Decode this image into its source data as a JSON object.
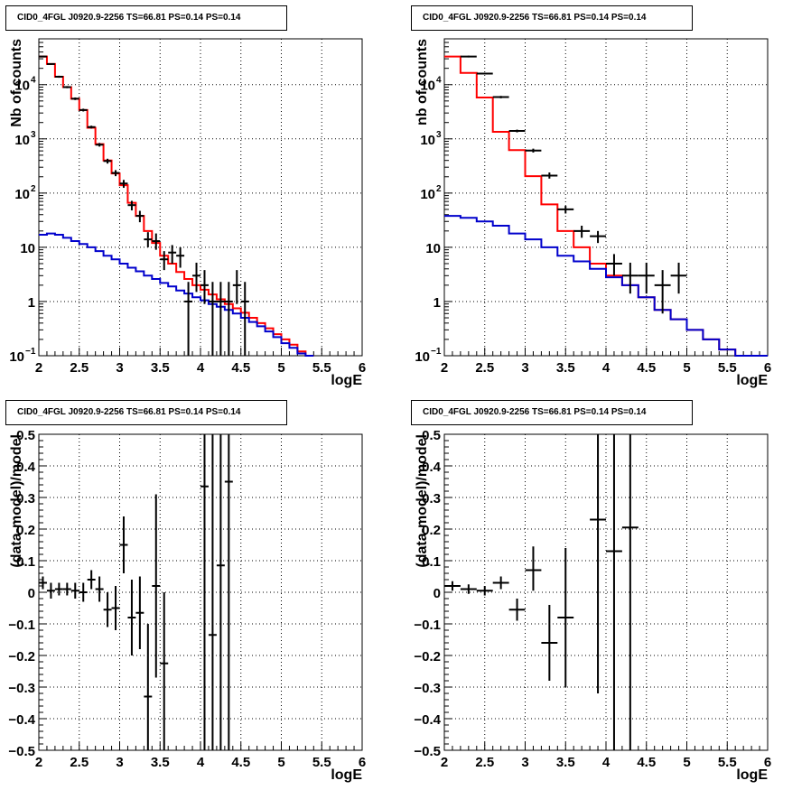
{
  "colors": {
    "data": "#000000",
    "total_model": "#ff0000",
    "component_model": "#0000cc",
    "grid": "#000000"
  },
  "chart_data": [
    {
      "type": "line",
      "scale": "log",
      "title": "CID0_4FGL J0920.9-2256 TS=66.81 PS=0.14 PS=0.14",
      "xlabel": "logE",
      "ylabel": "Nb of counts",
      "xlim": [
        2,
        6
      ],
      "ylim": [
        0.1,
        70000
      ],
      "xticks": [
        "2",
        "2.5",
        "3",
        "3.5",
        "4",
        "4.5",
        "5",
        "5.5",
        "6"
      ],
      "yticks": [
        {
          "v": 0.1,
          "label": "10",
          "sup": "−1"
        },
        {
          "v": 1,
          "label": "1"
        },
        {
          "v": 10,
          "label": "10"
        },
        {
          "v": 100,
          "label": "10",
          "sup": "2"
        },
        {
          "v": 1000,
          "label": "10",
          "sup": "3"
        },
        {
          "v": 10000,
          "label": "10",
          "sup": "4"
        }
      ],
      "grid": true,
      "bin_width": 0.1,
      "series": [
        {
          "role": "total",
          "bins": [
            [
              2.0,
              33000
            ],
            [
              2.1,
              24000
            ],
            [
              2.2,
              14000
            ],
            [
              2.3,
              9000
            ],
            [
              2.4,
              5500
            ],
            [
              2.5,
              3400
            ],
            [
              2.6,
              1600
            ],
            [
              2.7,
              800
            ],
            [
              2.8,
              400
            ],
            [
              2.9,
              230
            ],
            [
              3.0,
              140
            ],
            [
              3.1,
              66
            ],
            [
              3.2,
              38
            ],
            [
              3.3,
              20
            ],
            [
              3.4,
              12
            ],
            [
              3.5,
              7
            ],
            [
              3.6,
              5
            ],
            [
              3.7,
              3.5
            ],
            [
              3.8,
              2.6
            ],
            [
              3.9,
              2
            ],
            [
              4.0,
              1.65
            ],
            [
              4.1,
              1.35
            ],
            [
              4.2,
              1.1
            ],
            [
              4.3,
              0.9
            ],
            [
              4.4,
              0.75
            ],
            [
              4.5,
              0.62
            ],
            [
              4.6,
              0.5
            ],
            [
              4.7,
              0.4
            ],
            [
              4.8,
              0.32
            ],
            [
              4.9,
              0.25
            ],
            [
              5.0,
              0.2
            ],
            [
              5.1,
              0.16
            ],
            [
              5.2,
              0.12
            ],
            [
              5.3,
              0.1
            ]
          ]
        },
        {
          "role": "component",
          "bins": [
            [
              2.0,
              17
            ],
            [
              2.1,
              18
            ],
            [
              2.2,
              17
            ],
            [
              2.3,
              15
            ],
            [
              2.4,
              13
            ],
            [
              2.5,
              11.5
            ],
            [
              2.6,
              10
            ],
            [
              2.7,
              8.5
            ],
            [
              2.8,
              7
            ],
            [
              2.9,
              6
            ],
            [
              3.0,
              5
            ],
            [
              3.1,
              4.2
            ],
            [
              3.2,
              3.6
            ],
            [
              3.3,
              3
            ],
            [
              3.4,
              2.6
            ],
            [
              3.5,
              2.2
            ],
            [
              3.6,
              1.9
            ],
            [
              3.7,
              1.6
            ],
            [
              3.8,
              1.4
            ],
            [
              3.9,
              1.2
            ],
            [
              4.0,
              1.05
            ],
            [
              4.1,
              0.9
            ],
            [
              4.2,
              0.8
            ],
            [
              4.3,
              0.7
            ],
            [
              4.4,
              0.6
            ],
            [
              4.5,
              0.5
            ],
            [
              4.6,
              0.42
            ],
            [
              4.7,
              0.35
            ],
            [
              4.8,
              0.28
            ],
            [
              4.9,
              0.22
            ],
            [
              5.0,
              0.17
            ],
            [
              5.1,
              0.14
            ],
            [
              5.2,
              0.11
            ],
            [
              5.3,
              0.1
            ]
          ]
        }
      ],
      "points": [
        [
          2.05,
          33000,
          34000,
          32000
        ],
        [
          2.15,
          24000,
          24800,
          23200
        ],
        [
          2.25,
          14000,
          14600,
          13400
        ],
        [
          2.35,
          9000,
          9400,
          8600
        ],
        [
          2.45,
          5500,
          5800,
          5200
        ],
        [
          2.55,
          3400,
          3600,
          3200
        ],
        [
          2.65,
          1650,
          1750,
          1550
        ],
        [
          2.75,
          780,
          840,
          720
        ],
        [
          2.85,
          390,
          430,
          350
        ],
        [
          2.95,
          235,
          265,
          205
        ],
        [
          3.05,
          150,
          175,
          125
        ],
        [
          3.15,
          60,
          72,
          48
        ],
        [
          3.25,
          38,
          47,
          29
        ],
        [
          3.35,
          14,
          19,
          10
        ],
        [
          3.45,
          13,
          18,
          9
        ],
        [
          3.55,
          6,
          8.5,
          3.8
        ],
        [
          3.65,
          8,
          11,
          5
        ],
        [
          3.75,
          7,
          10,
          4.2
        ],
        [
          3.85,
          1,
          2.3,
          0.1
        ],
        [
          3.95,
          3,
          5.2,
          1.5
        ],
        [
          4.05,
          2,
          3.8,
          0.9
        ],
        [
          4.15,
          1,
          2.3,
          0.1
        ],
        [
          4.25,
          1,
          2.3,
          0.1
        ],
        [
          4.35,
          1,
          2.3,
          0.1
        ],
        [
          4.45,
          2,
          3.8,
          0.9
        ],
        [
          4.55,
          1,
          2.3,
          0.1
        ]
      ]
    },
    {
      "type": "line",
      "scale": "log",
      "title": "CID0_4FGL J0920.9-2256 TS=66.81 PS=0.14 PS=0.14",
      "xlabel": "logE",
      "ylabel": "nb of counts",
      "xlim": [
        2,
        6
      ],
      "ylim": [
        0.1,
        70000
      ],
      "xticks": [
        "2",
        "2.5",
        "3",
        "3.5",
        "4",
        "4.5",
        "5",
        "5.5",
        "6"
      ],
      "yticks": [
        {
          "v": 0.1,
          "label": "10",
          "sup": "−1"
        },
        {
          "v": 1,
          "label": "1"
        },
        {
          "v": 10,
          "label": "10"
        },
        {
          "v": 100,
          "label": "10",
          "sup": "2"
        },
        {
          "v": 1000,
          "label": "10",
          "sup": "3"
        },
        {
          "v": 10000,
          "label": "10",
          "sup": "4"
        }
      ],
      "grid": true,
      "bin_width": 0.2,
      "series": [
        {
          "role": "total",
          "bins": [
            [
              2.0,
              33000
            ],
            [
              2.2,
              16500
            ],
            [
              2.4,
              5800
            ],
            [
              2.6,
              1350
            ],
            [
              2.8,
              620
            ],
            [
              3.0,
              205
            ],
            [
              3.2,
              62
            ],
            [
              3.4,
              20
            ],
            [
              3.6,
              10
            ],
            [
              3.8,
              5
            ],
            [
              4.0,
              3
            ],
            [
              4.2,
              2
            ],
            [
              4.4,
              1.2
            ],
            [
              4.6,
              0.7
            ],
            [
              4.8,
              0.47
            ],
            [
              5.0,
              0.3
            ],
            [
              5.2,
              0.2
            ],
            [
              5.4,
              0.13
            ],
            [
              5.6,
              0.1
            ],
            [
              5.8,
              0.1
            ]
          ]
        },
        {
          "role": "component",
          "bins": [
            [
              2.0,
              38
            ],
            [
              2.2,
              35
            ],
            [
              2.4,
              30
            ],
            [
              2.6,
              25
            ],
            [
              2.8,
              18
            ],
            [
              3.0,
              14
            ],
            [
              3.2,
              10
            ],
            [
              3.4,
              7
            ],
            [
              3.6,
              5.5
            ],
            [
              3.8,
              4
            ],
            [
              4.0,
              2.8
            ],
            [
              4.2,
              2
            ],
            [
              4.4,
              1.2
            ],
            [
              4.6,
              0.7
            ],
            [
              4.8,
              0.47
            ],
            [
              5.0,
              0.3
            ],
            [
              5.2,
              0.2
            ],
            [
              5.4,
              0.13
            ],
            [
              5.6,
              0.1
            ],
            [
              5.8,
              0.1
            ]
          ]
        }
      ],
      "points": [
        [
          2.3,
          33000,
          34200,
          31800
        ],
        [
          2.5,
          16000,
          16600,
          15400
        ],
        [
          2.7,
          5900,
          6200,
          5600
        ],
        [
          2.9,
          1400,
          1480,
          1320
        ],
        [
          3.1,
          610,
          660,
          560
        ],
        [
          3.3,
          210,
          240,
          185
        ],
        [
          3.5,
          50,
          58,
          42
        ],
        [
          3.7,
          20,
          25,
          15
        ],
        [
          3.9,
          16,
          20,
          12
        ],
        [
          4.1,
          5,
          7.5,
          3
        ],
        [
          4.3,
          3,
          5.2,
          1.4
        ],
        [
          4.5,
          3,
          5.2,
          1.4
        ],
        [
          4.7,
          2,
          3.8,
          0.6
        ],
        [
          4.9,
          3,
          5.2,
          1.4
        ]
      ]
    },
    {
      "type": "scatter",
      "title": "CID0_4FGL J0920.9-2256 TS=66.81 PS=0.14 PS=0.14",
      "xlabel": "logE",
      "ylabel": "(data-model)/model",
      "xlim": [
        2,
        6
      ],
      "ylim": [
        -0.5,
        0.5
      ],
      "xticks": [
        "2",
        "2.5",
        "3",
        "3.5",
        "4",
        "4.5",
        "5",
        "5.5",
        "6"
      ],
      "yticks": [
        {
          "v": -0.5,
          "label": "−0.5"
        },
        {
          "v": -0.4,
          "label": "−0.4"
        },
        {
          "v": -0.3,
          "label": "−0.3"
        },
        {
          "v": -0.2,
          "label": "−0.2"
        },
        {
          "v": -0.1,
          "label": "−0.1"
        },
        {
          "v": 0,
          "label": "0"
        },
        {
          "v": 0.1,
          "label": "0.1"
        },
        {
          "v": 0.2,
          "label": "0.2"
        },
        {
          "v": 0.3,
          "label": "0.3"
        },
        {
          "v": 0.4,
          "label": "0.4"
        },
        {
          "v": 0.5,
          "label": "0.5"
        }
      ],
      "grid": true,
      "bin_width": 0.1,
      "points": [
        [
          2.05,
          0.03,
          0.05,
          0.01
        ],
        [
          2.15,
          0.005,
          0.03,
          -0.02
        ],
        [
          2.25,
          0.01,
          0.03,
          -0.01
        ],
        [
          2.35,
          0.01,
          0.03,
          -0.01
        ],
        [
          2.45,
          0.005,
          0.03,
          -0.02
        ],
        [
          2.55,
          0,
          0.03,
          -0.03
        ],
        [
          2.65,
          0.04,
          0.07,
          0.01
        ],
        [
          2.75,
          0.01,
          0.05,
          -0.03
        ],
        [
          2.85,
          -0.055,
          0,
          -0.11
        ],
        [
          2.95,
          -0.05,
          0.02,
          -0.12
        ],
        [
          3.05,
          0.15,
          0.24,
          0.06
        ],
        [
          3.15,
          -0.08,
          0.04,
          -0.2
        ],
        [
          3.25,
          -0.065,
          0.05,
          -0.18
        ],
        [
          3.35,
          -0.33,
          -0.1,
          -0.56
        ],
        [
          3.45,
          0.02,
          0.31,
          -0.27
        ],
        [
          3.55,
          -0.225,
          0,
          -0.5
        ],
        [
          4.05,
          0.335,
          1.0,
          -0.5
        ],
        [
          4.15,
          -0.135,
          1.0,
          -0.5
        ],
        [
          4.25,
          0.085,
          1.0,
          -0.5
        ],
        [
          4.35,
          0.35,
          1.0,
          -0.5
        ]
      ]
    },
    {
      "type": "scatter",
      "title": "CID0_4FGL J0920.9-2256 TS=66.81 PS=0.14 PS=0.14",
      "xlabel": "logE",
      "ylabel": "(data-model)/model",
      "xlim": [
        2,
        6
      ],
      "ylim": [
        -0.5,
        0.5
      ],
      "xticks": [
        "2",
        "2.5",
        "3",
        "3.5",
        "4",
        "4.5",
        "5",
        "5.5",
        "6"
      ],
      "yticks": [
        {
          "v": -0.5,
          "label": "−0.5"
        },
        {
          "v": -0.4,
          "label": "−0.4"
        },
        {
          "v": -0.3,
          "label": "−0.3"
        },
        {
          "v": -0.2,
          "label": "−0.2"
        },
        {
          "v": -0.1,
          "label": "−0.1"
        },
        {
          "v": 0,
          "label": "0"
        },
        {
          "v": 0.1,
          "label": "0.1"
        },
        {
          "v": 0.2,
          "label": "0.2"
        },
        {
          "v": 0.3,
          "label": "0.3"
        },
        {
          "v": 0.4,
          "label": "0.4"
        },
        {
          "v": 0.5,
          "label": "0.5"
        }
      ],
      "grid": true,
      "bin_width": 0.2,
      "points": [
        [
          2.1,
          0.02,
          0.035,
          0.005
        ],
        [
          2.3,
          0.01,
          0.025,
          -0.005
        ],
        [
          2.5,
          0.005,
          0.02,
          -0.01
        ],
        [
          2.7,
          0.03,
          0.05,
          0.01
        ],
        [
          2.9,
          -0.055,
          -0.02,
          -0.09
        ],
        [
          3.1,
          0.07,
          0.145,
          0.005
        ],
        [
          3.3,
          -0.16,
          -0.04,
          -0.28
        ],
        [
          3.5,
          -0.08,
          0.14,
          -0.3
        ],
        [
          3.9,
          0.23,
          1.0,
          -0.32
        ],
        [
          4.1,
          0.13,
          1.0,
          -0.5
        ],
        [
          4.3,
          0.205,
          1.0,
          -0.5
        ]
      ]
    }
  ]
}
